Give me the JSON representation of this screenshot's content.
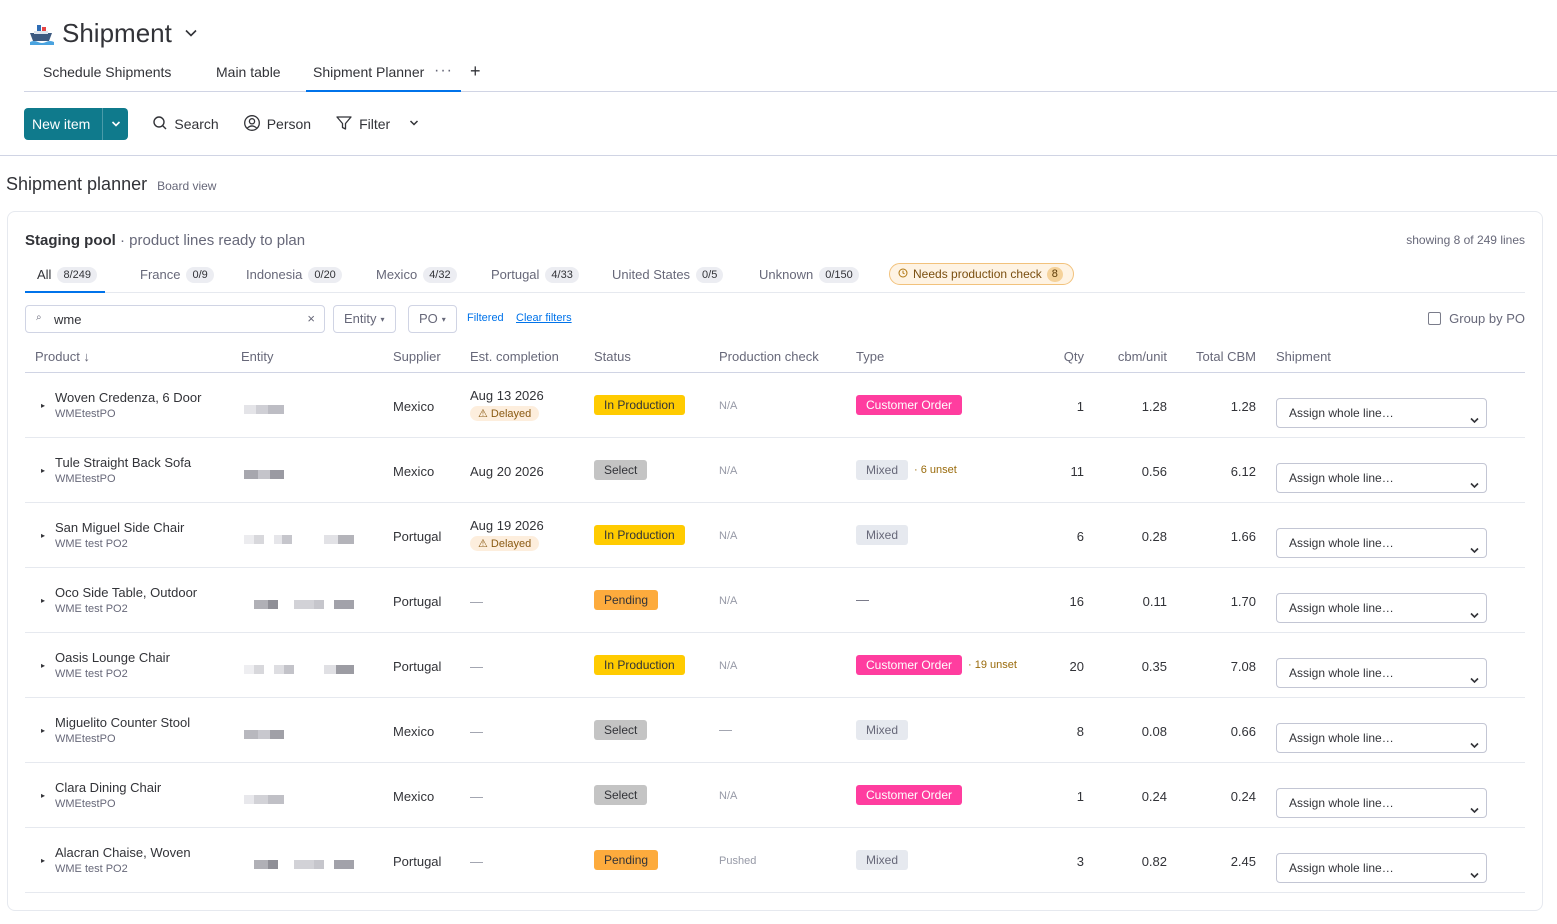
{
  "board": {
    "title": "Shipment",
    "icon": "ship-icon"
  },
  "views": [
    {
      "label": "Schedule Shipments"
    },
    {
      "label": "Main table"
    },
    {
      "label": "Shipment Planner",
      "active": true
    }
  ],
  "toolbar": {
    "new_item": "New item",
    "search": "Search",
    "person": "Person",
    "filter": "Filter"
  },
  "page": {
    "title": "Shipment planner",
    "subtitle": "Board view"
  },
  "staging": {
    "title": "Staging pool",
    "subtitle": "· product lines ready to plan",
    "showing": "showing 8 of 249 lines"
  },
  "country_tabs": [
    {
      "label": "All",
      "count": "8/249",
      "active": true
    },
    {
      "label": "France",
      "count": "0/9"
    },
    {
      "label": "Indonesia",
      "count": "0/20"
    },
    {
      "label": "Mexico",
      "count": "4/32"
    },
    {
      "label": "Portugal",
      "count": "4/33"
    },
    {
      "label": "United States",
      "count": "0/5"
    },
    {
      "label": "Unknown",
      "count": "0/150"
    }
  ],
  "needs_check": {
    "label": "Needs production check",
    "count": "8"
  },
  "filters": {
    "search_value": "wme",
    "entity": "Entity",
    "po": "PO",
    "filtered": "Filtered",
    "clear": "Clear filters",
    "group_by_po": "Group by PO"
  },
  "columns": {
    "product": "Product ↓",
    "entity": "Entity",
    "supplier": "Supplier",
    "est": "Est. completion",
    "status": "Status",
    "prodcheck": "Production check",
    "type": "Type",
    "qty": "Qty",
    "cbm": "cbm/unit",
    "tcbm": "Total CBM",
    "shipment": "Shipment"
  },
  "rows": [
    {
      "product": "Woven Credenza, 6 Door",
      "po": "WMEtestPO",
      "supplier": "Mexico",
      "est": "Aug 13 2026",
      "delayed": "⚠ Delayed",
      "status": "In Production",
      "prodcheck": "N/A",
      "type": "Customer Order",
      "unset": "",
      "qty": "1",
      "cbm": "1.28",
      "tcbm": "1.28",
      "shipment": "Assign whole line…"
    },
    {
      "product": "Tule Straight Back Sofa",
      "po": "WMEtestPO",
      "supplier": "Mexico",
      "est": "Aug 20 2026",
      "delayed": "",
      "status": "Select",
      "prodcheck": "N/A",
      "type": "Mixed",
      "unset": "· 6 unset",
      "qty": "11",
      "cbm": "0.56",
      "tcbm": "6.12",
      "shipment": "Assign whole line…"
    },
    {
      "product": "San Miguel Side Chair",
      "po": "WME test PO2",
      "supplier": "Portugal",
      "est": "Aug 19 2026",
      "delayed": "⚠ Delayed",
      "status": "In Production",
      "prodcheck": "N/A",
      "type": "Mixed",
      "unset": "",
      "qty": "6",
      "cbm": "0.28",
      "tcbm": "1.66",
      "shipment": "Assign whole line…"
    },
    {
      "product": "Oco Side Table, Outdoor",
      "po": "WME test PO2",
      "supplier": "Portugal",
      "est": "—",
      "delayed": "",
      "status": "Pending",
      "prodcheck": "N/A",
      "type": "—",
      "unset": "",
      "qty": "16",
      "cbm": "0.11",
      "tcbm": "1.70",
      "shipment": "Assign whole line…"
    },
    {
      "product": "Oasis Lounge Chair",
      "po": "WME test PO2",
      "supplier": "Portugal",
      "est": "—",
      "delayed": "",
      "status": "In Production",
      "prodcheck": "N/A",
      "type": "Customer Order",
      "unset": "· 19 unset",
      "qty": "20",
      "cbm": "0.35",
      "tcbm": "7.08",
      "shipment": "Assign whole line…"
    },
    {
      "product": "Miguelito Counter Stool",
      "po": "WMEtestPO",
      "supplier": "Mexico",
      "est": "—",
      "delayed": "",
      "status": "Select",
      "prodcheck": "—",
      "type": "Mixed",
      "unset": "",
      "qty": "8",
      "cbm": "0.08",
      "tcbm": "0.66",
      "shipment": "Assign whole line…"
    },
    {
      "product": "Clara Dining Chair",
      "po": "WMEtestPO",
      "supplier": "Mexico",
      "est": "—",
      "delayed": "",
      "status": "Select",
      "prodcheck": "N/A",
      "type": "Customer Order",
      "unset": "",
      "qty": "1",
      "cbm": "0.24",
      "tcbm": "0.24",
      "shipment": "Assign whole line…"
    },
    {
      "product": "Alacran Chaise, Woven",
      "po": "WME test PO2",
      "supplier": "Portugal",
      "est": "—",
      "delayed": "",
      "status": "Pending",
      "prodcheck": "Pushed",
      "type": "Mixed",
      "unset": "",
      "qty": "3",
      "cbm": "0.82",
      "tcbm": "2.45",
      "shipment": "Assign whole line…"
    }
  ],
  "colors": {
    "accent": "#0073ea",
    "new_item": "#0f7a8c",
    "in_production": "#ffcb00",
    "pending": "#fdab3d",
    "select": "#c4c4c4",
    "customer_order": "#ff3d9f",
    "mixed": "#e6e9ef"
  }
}
